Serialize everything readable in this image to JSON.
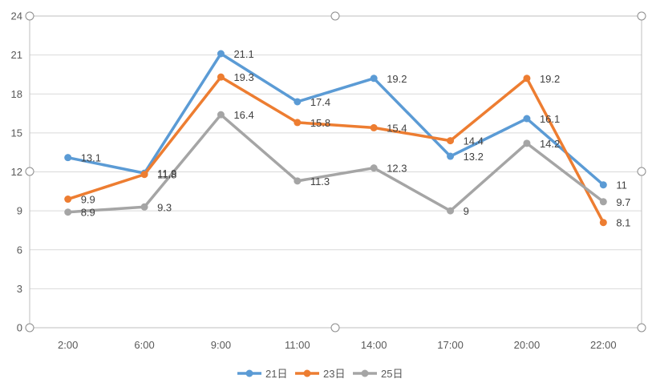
{
  "chart_data": {
    "type": "line",
    "title": "",
    "xlabel": "",
    "ylabel": "",
    "categories": [
      "2:00",
      "6:00",
      "9:00",
      "11:00",
      "14:00",
      "17:00",
      "20:00",
      "22:00"
    ],
    "ylim": [
      0,
      24
    ],
    "yticks": [
      0,
      3,
      6,
      9,
      12,
      15,
      18,
      21,
      24
    ],
    "grid": true,
    "legend_position": "bottom",
    "series": [
      {
        "name": "21日",
        "color": "#5B9BD5",
        "values": [
          13.1,
          11.9,
          21.1,
          17.4,
          19.2,
          13.2,
          16.1,
          11
        ]
      },
      {
        "name": "23日",
        "color": "#ED7D31",
        "values": [
          9.9,
          11.8,
          19.3,
          15.8,
          15.4,
          14.4,
          19.2,
          8.1
        ]
      },
      {
        "name": "25日",
        "color": "#A5A5A5",
        "values": [
          8.9,
          9.3,
          16.4,
          11.3,
          12.3,
          9,
          14.2,
          9.7
        ]
      }
    ],
    "data_labels": {
      "21日": [
        "13.1",
        "11.9",
        "21.1",
        "17.4",
        "19.2",
        "13.2",
        "16.1",
        "11"
      ],
      "23日": [
        "9.9",
        "11.8",
        "19.3",
        "15.8",
        "15.4",
        "14.4",
        "19.2",
        "8.1"
      ],
      "25日": [
        "8.9",
        "9.3",
        "16.4",
        "11.3",
        "12.3",
        "9",
        "14.2",
        "9.7"
      ]
    }
  }
}
